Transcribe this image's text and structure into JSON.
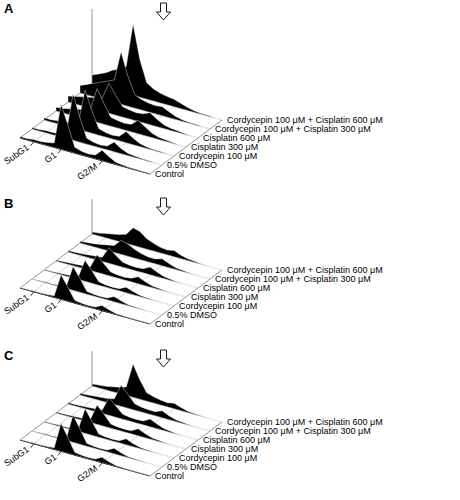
{
  "chart_data": [
    {
      "type": "area",
      "title": "A",
      "color": "#000000",
      "grid": true,
      "tick_labels": "x",
      "x": [
        0,
        1,
        2,
        3,
        4,
        5,
        6,
        7,
        8,
        9,
        10,
        11,
        12,
        13,
        14,
        15,
        16,
        17,
        18,
        19
      ],
      "xlim": [
        0,
        19
      ],
      "xticks": [
        {
          "value": 2,
          "label": "SubG1"
        },
        {
          "value": 6,
          "label": "G1"
        },
        {
          "value": 12,
          "label": "G2/M"
        }
      ],
      "ylim": [
        0,
        100
      ],
      "series": [
        {
          "name": "Control",
          "values": [
            2,
            2,
            3,
            3,
            4,
            6,
            60,
            35,
            8,
            5,
            4,
            5,
            14,
            8,
            3,
            2,
            1,
            1,
            0,
            0
          ]
        },
        {
          "name": "0.5% DMSO",
          "values": [
            2,
            2,
            3,
            3,
            4,
            7,
            62,
            33,
            8,
            5,
            4,
            5,
            13,
            7,
            3,
            2,
            1,
            1,
            0,
            0
          ]
        },
        {
          "name": "Cordycepin 100 μM",
          "values": [
            3,
            3,
            4,
            5,
            6,
            8,
            55,
            30,
            9,
            6,
            5,
            6,
            15,
            9,
            4,
            2,
            1,
            1,
            0,
            0
          ]
        },
        {
          "name": "Cisplatin 300 μM",
          "values": [
            5,
            6,
            8,
            10,
            12,
            14,
            45,
            28,
            12,
            10,
            9,
            10,
            18,
            12,
            6,
            3,
            2,
            1,
            0,
            0
          ]
        },
        {
          "name": "Cisplatin 600 μM",
          "values": [
            8,
            10,
            12,
            14,
            16,
            18,
            40,
            26,
            14,
            12,
            11,
            12,
            16,
            10,
            5,
            3,
            2,
            1,
            0,
            0
          ]
        },
        {
          "name": "Cordycepin 100 μM + Cisplatin 300 μM",
          "values": [
            10,
            14,
            18,
            22,
            26,
            30,
            70,
            40,
            18,
            14,
            12,
            11,
            12,
            8,
            4,
            2,
            1,
            1,
            0,
            0
          ]
        },
        {
          "name": "Cordycepin 100 μM + Cisplatin 600 μM",
          "values": [
            12,
            16,
            20,
            26,
            30,
            36,
            95,
            50,
            22,
            16,
            13,
            11,
            10,
            7,
            4,
            2,
            1,
            1,
            0,
            0
          ]
        }
      ]
    },
    {
      "type": "area",
      "title": "B",
      "color": "#000000",
      "grid": true,
      "tick_labels": "x",
      "x": [
        0,
        1,
        2,
        3,
        4,
        5,
        6,
        7,
        8,
        9,
        10,
        11,
        12,
        13,
        14,
        15,
        16,
        17,
        18,
        19
      ],
      "xlim": [
        0,
        19
      ],
      "xticks": [
        {
          "value": 2,
          "label": "SubG1"
        },
        {
          "value": 6,
          "label": "G1"
        },
        {
          "value": 12,
          "label": "G2/M"
        }
      ],
      "ylim": [
        0,
        100
      ],
      "series": [
        {
          "name": "Control",
          "values": [
            1,
            1,
            2,
            2,
            3,
            5,
            70,
            40,
            8,
            5,
            4,
            5,
            15,
            8,
            3,
            2,
            1,
            0,
            0,
            0
          ]
        },
        {
          "name": "0.5% DMSO",
          "values": [
            1,
            1,
            2,
            2,
            3,
            5,
            68,
            40,
            8,
            5,
            4,
            5,
            15,
            8,
            3,
            2,
            1,
            0,
            0,
            0
          ]
        },
        {
          "name": "Cordycepin 100 μM",
          "values": [
            2,
            2,
            3,
            4,
            5,
            7,
            60,
            36,
            10,
            6,
            5,
            6,
            16,
            9,
            4,
            2,
            1,
            0,
            0,
            0
          ]
        },
        {
          "name": "Cisplatin 300 μM",
          "values": [
            3,
            4,
            5,
            6,
            8,
            10,
            50,
            30,
            12,
            9,
            8,
            10,
            20,
            12,
            5,
            3,
            1,
            0,
            0,
            0
          ]
        },
        {
          "name": "Cisplatin 600 μM",
          "values": [
            4,
            5,
            6,
            8,
            10,
            12,
            45,
            28,
            14,
            11,
            10,
            12,
            22,
            13,
            6,
            3,
            1,
            0,
            0,
            0
          ]
        },
        {
          "name": "Cordycepin 100 μM + Cisplatin 300 μM",
          "values": [
            5,
            7,
            9,
            12,
            16,
            20,
            40,
            35,
            25,
            18,
            14,
            14,
            20,
            12,
            5,
            3,
            1,
            0,
            0,
            0
          ]
        },
        {
          "name": "Cordycepin 100 μM + Cisplatin 600 μM",
          "values": [
            6,
            8,
            12,
            16,
            20,
            26,
            50,
            45,
            30,
            22,
            16,
            14,
            18,
            10,
            5,
            3,
            1,
            0,
            0,
            0
          ]
        }
      ]
    },
    {
      "type": "area",
      "title": "C",
      "color": "#000000",
      "grid": true,
      "tick_labels": "x",
      "x": [
        0,
        1,
        2,
        3,
        4,
        5,
        6,
        7,
        8,
        9,
        10,
        11,
        12,
        13,
        14,
        15,
        16,
        17,
        18,
        19
      ],
      "xlim": [
        0,
        19
      ],
      "xticks": [
        {
          "value": 2,
          "label": "SubG1"
        },
        {
          "value": 6,
          "label": "G1"
        },
        {
          "value": 12,
          "label": "G2/M"
        }
      ],
      "ylim": [
        0,
        100
      ],
      "series": [
        {
          "name": "Control",
          "values": [
            1,
            1,
            2,
            2,
            3,
            5,
            80,
            45,
            8,
            5,
            4,
            5,
            16,
            8,
            3,
            2,
            1,
            0,
            0,
            0
          ]
        },
        {
          "name": "0.5% DMSO",
          "values": [
            1,
            1,
            2,
            2,
            3,
            5,
            78,
            44,
            8,
            5,
            4,
            5,
            16,
            8,
            3,
            2,
            1,
            0,
            0,
            0
          ]
        },
        {
          "name": "Cordycepin 100 μM",
          "values": [
            2,
            2,
            3,
            3,
            4,
            6,
            70,
            40,
            9,
            6,
            5,
            6,
            17,
            9,
            4,
            2,
            1,
            0,
            0,
            0
          ]
        },
        {
          "name": "Cisplatin 300 μM",
          "values": [
            3,
            3,
            4,
            5,
            6,
            8,
            55,
            35,
            12,
            9,
            8,
            9,
            20,
            12,
            5,
            3,
            1,
            0,
            0,
            0
          ]
        },
        {
          "name": "Cisplatin 600 μM",
          "values": [
            4,
            4,
            5,
            6,
            8,
            10,
            50,
            32,
            14,
            11,
            10,
            11,
            22,
            13,
            6,
            3,
            1,
            0,
            0,
            0
          ]
        },
        {
          "name": "Cordycepin 100 μM + Cisplatin 300 μM",
          "values": [
            5,
            6,
            8,
            10,
            12,
            16,
            60,
            40,
            18,
            14,
            12,
            12,
            20,
            11,
            5,
            3,
            1,
            0,
            0,
            0
          ]
        },
        {
          "name": "Cordycepin 100 μM + Cisplatin 600 μM",
          "values": [
            6,
            8,
            10,
            14,
            18,
            24,
            95,
            55,
            24,
            18,
            14,
            12,
            16,
            9,
            4,
            2,
            1,
            0,
            0,
            0
          ]
        }
      ]
    }
  ]
}
